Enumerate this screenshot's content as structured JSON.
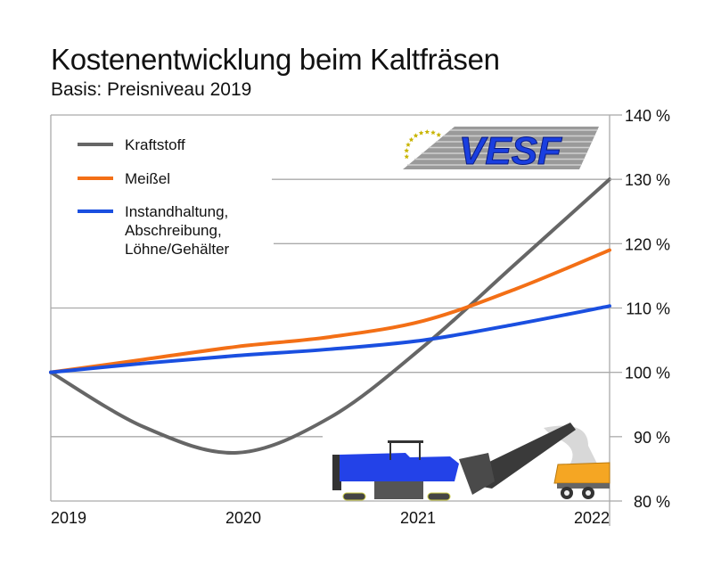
{
  "chart_data": {
    "type": "line",
    "title": "Kostenentwicklung beim Kaltfräsen",
    "subtitle": "Basis: Preisniveau 2019",
    "xlabel": "",
    "ylabel": "",
    "x_ticks": [
      "2019",
      "2020",
      "2021",
      "2022"
    ],
    "xlim": [
      2019,
      2022
    ],
    "y_ticks": [
      "80 %",
      "90 %",
      "100 %",
      "110 %",
      "120 %",
      "130 %",
      "140 %"
    ],
    "y_tick_values": [
      80,
      90,
      100,
      110,
      120,
      130,
      140
    ],
    "ylim": [
      80,
      140
    ],
    "y_axis_side": "right",
    "grid": true,
    "legend_position": "top-left",
    "series": [
      {
        "name": "Kraftstoff",
        "color": "#666666",
        "x": [
          2019,
          2019.5,
          2020,
          2020.5,
          2021,
          2021.5,
          2022
        ],
        "y": [
          100,
          91.5,
          87.5,
          93,
          104,
          117,
          130
        ]
      },
      {
        "name": "Meißel",
        "color": "#f36f16",
        "x": [
          2019,
          2019.5,
          2020,
          2020.5,
          2021,
          2021.5,
          2022
        ],
        "y": [
          100,
          102,
          104,
          105.5,
          108,
          113,
          119
        ]
      },
      {
        "name_lines": [
          "Instandhaltung,",
          "Abschreibung,",
          "Löhne/Gehälter"
        ],
        "name": "Instandhaltung, Abschreibung, Löhne/Gehälter",
        "color": "#1a4fe0",
        "x": [
          2019,
          2019.5,
          2020,
          2020.5,
          2021,
          2021.5,
          2022
        ],
        "y": [
          100,
          101.4,
          102.6,
          103.6,
          105,
          107.5,
          110.3
        ]
      }
    ]
  },
  "logo": {
    "text": "VESF"
  }
}
